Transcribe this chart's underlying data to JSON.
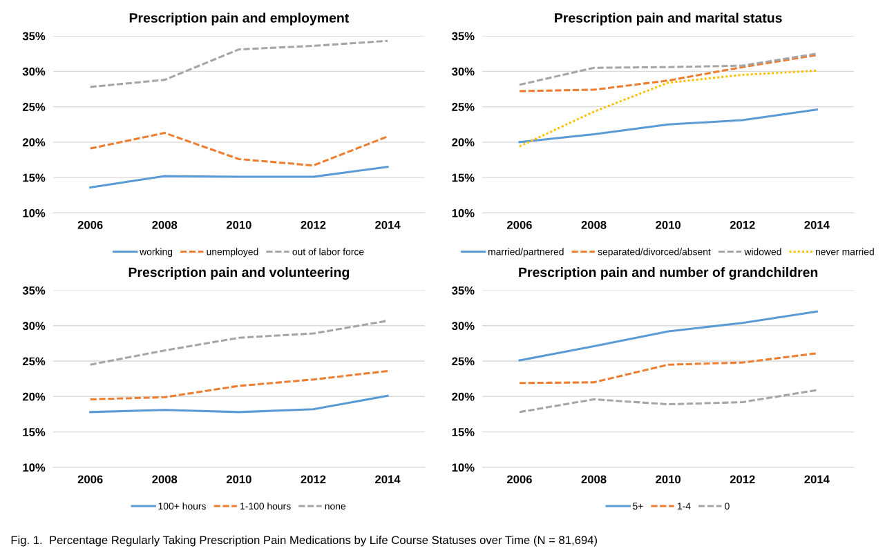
{
  "chart_data": [
    {
      "type": "line",
      "title": "Prescription pain and employment",
      "categories": [
        "2006",
        "2008",
        "2010",
        "2012",
        "2014"
      ],
      "ylim": [
        10,
        35
      ],
      "yticks": [
        {
          "value": 10,
          "label": "10%"
        },
        {
          "value": 15,
          "label": "15%"
        },
        {
          "value": 20,
          "label": "20%"
        },
        {
          "value": 25,
          "label": "25%"
        },
        {
          "value": 30,
          "label": "30%"
        },
        {
          "value": 35,
          "label": "35%"
        }
      ],
      "grid": "y",
      "legend": "bottom",
      "annotations": [
        "Fig. 1.  Percentage Regularly Taking Prescription Pain Medications by Life Course Statuses over Time (N = 81,694)"
      ],
      "series": [
        {
          "name": "working",
          "color": "#5b9bd5",
          "line_style": "solid",
          "values": [
            13.6,
            15.2,
            15.1,
            15.1,
            16.5
          ]
        },
        {
          "name": "unemployed",
          "color": "#ed7d31",
          "line_style": "dashed",
          "values": [
            19.1,
            21.3,
            17.6,
            16.7,
            20.8
          ]
        },
        {
          "name": "out of labor force",
          "color": "#a5a5a5",
          "line_style": "dashed",
          "values": [
            27.8,
            28.8,
            33.1,
            33.6,
            34.3
          ]
        }
      ]
    },
    {
      "type": "line",
      "title": "Prescription pain and marital status",
      "categories": [
        "2006",
        "2008",
        "2010",
        "2012",
        "2014"
      ],
      "ylim": [
        10,
        35
      ],
      "yticks": [
        {
          "value": 10,
          "label": "10%"
        },
        {
          "value": 15,
          "label": "15%"
        },
        {
          "value": 20,
          "label": "20%"
        },
        {
          "value": 25,
          "label": "25%"
        },
        {
          "value": 30,
          "label": "30%"
        },
        {
          "value": 35,
          "label": "35%"
        }
      ],
      "grid": "y",
      "legend": "bottom",
      "series": [
        {
          "name": "married/partnered",
          "color": "#5b9bd5",
          "line_style": "solid",
          "values": [
            20.0,
            21.1,
            22.5,
            23.1,
            24.6
          ]
        },
        {
          "name": "separated/divorced/absent",
          "color": "#ed7d31",
          "line_style": "dashed",
          "values": [
            27.2,
            27.4,
            28.7,
            30.6,
            32.3
          ]
        },
        {
          "name": "widowed",
          "color": "#a5a5a5",
          "line_style": "dashed",
          "values": [
            28.1,
            30.5,
            30.6,
            30.8,
            32.5
          ]
        },
        {
          "name": "never married",
          "color": "#ffc000",
          "line_style": "dotted",
          "values": [
            19.4,
            24.3,
            28.4,
            29.5,
            30.1
          ]
        }
      ]
    },
    {
      "type": "line",
      "title": "Prescription pain and volunteering",
      "categories": [
        "2006",
        "2008",
        "2010",
        "2012",
        "2014"
      ],
      "ylim": [
        10,
        35
      ],
      "yticks": [
        {
          "value": 10,
          "label": "10%"
        },
        {
          "value": 15,
          "label": "15%"
        },
        {
          "value": 20,
          "label": "20%"
        },
        {
          "value": 25,
          "label": "25%"
        },
        {
          "value": 30,
          "label": "30%"
        },
        {
          "value": 35,
          "label": "35%"
        }
      ],
      "grid": "y",
      "legend": "bottom",
      "series": [
        {
          "name": "100+ hours",
          "color": "#5b9bd5",
          "line_style": "solid",
          "values": [
            17.8,
            18.1,
            17.8,
            18.2,
            20.1
          ]
        },
        {
          "name": "1-100 hours",
          "color": "#ed7d31",
          "line_style": "dashed",
          "values": [
            19.6,
            19.9,
            21.5,
            22.4,
            23.6
          ]
        },
        {
          "name": "none",
          "color": "#a5a5a5",
          "line_style": "dashed",
          "values": [
            24.5,
            26.5,
            28.3,
            28.9,
            30.7
          ]
        }
      ]
    },
    {
      "type": "line",
      "title": "Prescription pain and number of grandchildren",
      "categories": [
        "2006",
        "2008",
        "2010",
        "2012",
        "2014"
      ],
      "ylim": [
        10,
        35
      ],
      "yticks": [
        {
          "value": 10,
          "label": "10%"
        },
        {
          "value": 15,
          "label": "15%"
        },
        {
          "value": 20,
          "label": "20%"
        },
        {
          "value": 25,
          "label": "25%"
        },
        {
          "value": 30,
          "label": "30%"
        },
        {
          "value": 35,
          "label": "35%"
        }
      ],
      "grid": "y",
      "legend": "bottom",
      "series": [
        {
          "name": "5+",
          "color": "#5b9bd5",
          "line_style": "solid",
          "values": [
            25.1,
            27.1,
            29.2,
            30.4,
            32.0
          ]
        },
        {
          "name": "1-4",
          "color": "#ed7d31",
          "line_style": "dashed",
          "values": [
            21.9,
            22.0,
            24.5,
            24.8,
            26.1
          ]
        },
        {
          "name": "0",
          "color": "#a5a5a5",
          "line_style": "dashed",
          "values": [
            17.8,
            19.6,
            18.9,
            19.2,
            20.9
          ]
        }
      ]
    }
  ]
}
